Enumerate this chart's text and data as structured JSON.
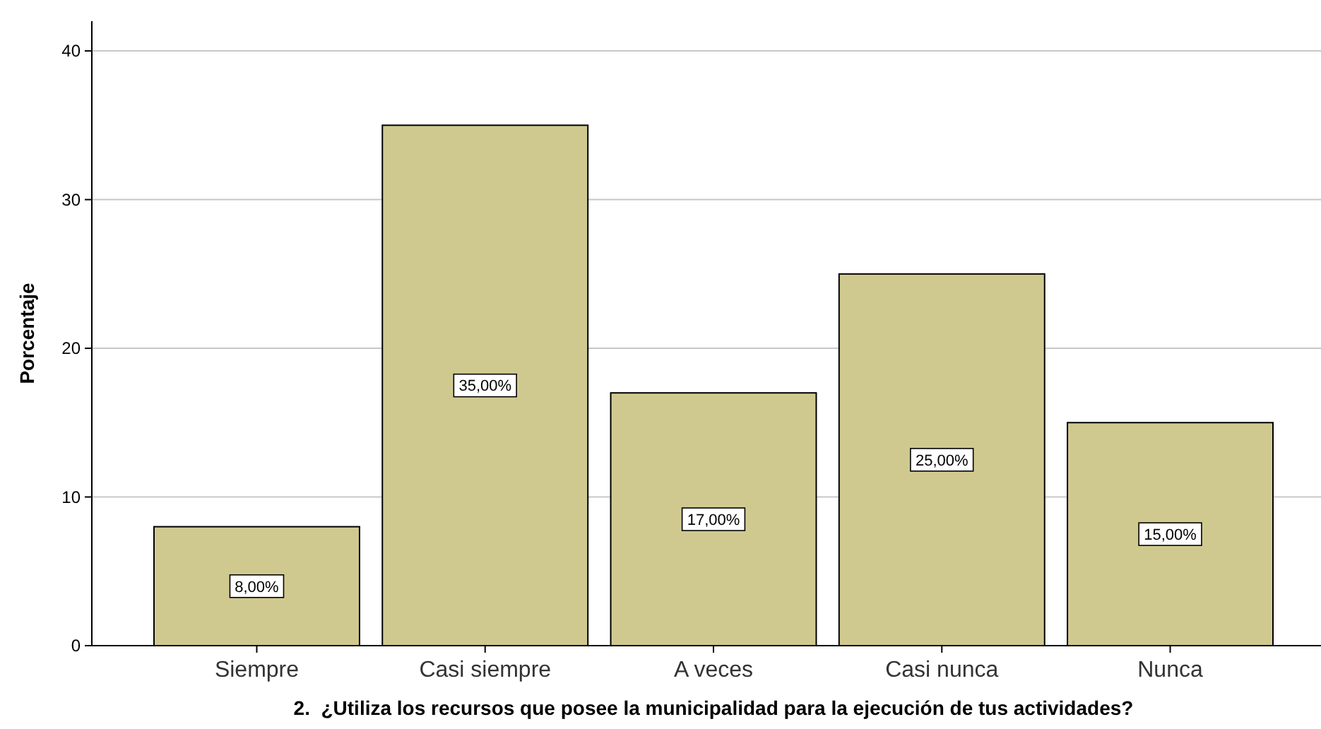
{
  "chart_data": {
    "type": "bar",
    "xlabel": "2.  ¿Utiliza los recursos que posee la municipalidad para la ejecución de tus actividades?",
    "ylabel": "Porcentaje",
    "categories": [
      "Siempre",
      "Casi siempre",
      "A veces",
      "Casi nunca",
      "Nunca"
    ],
    "values": [
      8,
      35,
      17,
      25,
      15
    ],
    "value_labels": [
      "8,00%",
      "35,00%",
      "17,00%",
      "25,00%",
      "15,00%"
    ],
    "color": "#d0c98f",
    "ylim": [
      0,
      42
    ],
    "yticks": [
      0,
      10,
      20,
      30,
      40
    ],
    "grid": "y"
  }
}
